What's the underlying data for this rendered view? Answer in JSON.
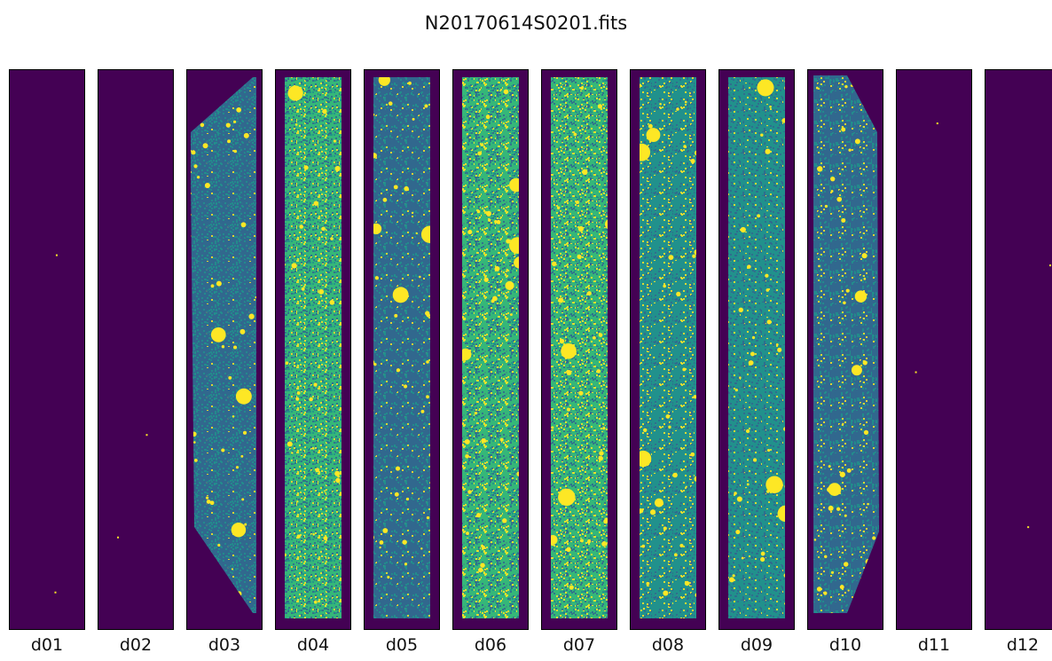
{
  "title": "N20170614S0201.fits",
  "colors": {
    "background": "#440154",
    "star": "#fde725",
    "low": "#31688e",
    "mid": "#21918c",
    "high": "#35b779"
  },
  "panels": [
    {
      "label": "d01",
      "state": "empty"
    },
    {
      "label": "d02",
      "state": "empty"
    },
    {
      "label": "d03",
      "state": "left-edge",
      "brightness": 0.25
    },
    {
      "label": "d04",
      "state": "full",
      "brightness": 0.75
    },
    {
      "label": "d05",
      "state": "full",
      "brightness": 0.35
    },
    {
      "label": "d06",
      "state": "full",
      "brightness": 0.85
    },
    {
      "label": "d07",
      "state": "full",
      "brightness": 0.85
    },
    {
      "label": "d08",
      "state": "full",
      "brightness": 0.45
    },
    {
      "label": "d09",
      "state": "full",
      "brightness": 0.55
    },
    {
      "label": "d10",
      "state": "right-edge",
      "brightness": 0.25
    },
    {
      "label": "d11",
      "state": "empty"
    },
    {
      "label": "d12",
      "state": "empty"
    }
  ]
}
